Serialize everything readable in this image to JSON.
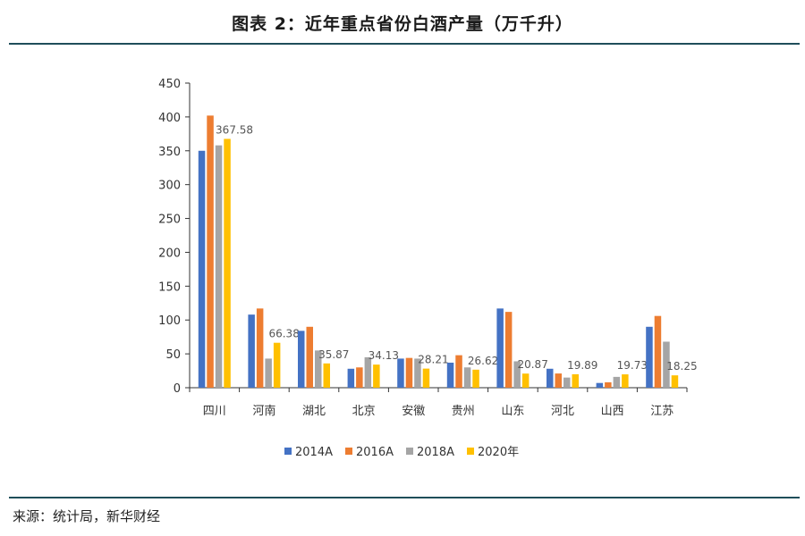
{
  "page": {
    "title": "图表 2：近年重点省份白酒产量（万千升）",
    "source": "来源：统计局，新华财经",
    "rule_color": "#1f4e5a"
  },
  "chart_data": {
    "type": "bar",
    "title": "图表 2：近年重点省份白酒产量（万千升）",
    "xlabel": "",
    "ylabel": "",
    "ylim": [
      0,
      450
    ],
    "yticks": [
      0,
      50,
      100,
      150,
      200,
      250,
      300,
      350,
      400,
      450
    ],
    "grid": false,
    "legend_position": "bottom",
    "categories": [
      "四川",
      "河南",
      "湖北",
      "北京",
      "安徽",
      "贵州",
      "山东",
      "河北",
      "山西",
      "江苏"
    ],
    "series": [
      {
        "name": "2014A",
        "color": "#4472c4",
        "values": [
          350,
          108,
          84,
          28,
          43,
          37,
          117,
          28,
          7,
          90
        ]
      },
      {
        "name": "2016A",
        "color": "#ed7d31",
        "values": [
          402,
          117,
          90,
          30,
          44,
          48,
          112,
          21,
          8,
          106
        ]
      },
      {
        "name": "2018A",
        "color": "#a5a5a5",
        "values": [
          358,
          43,
          55,
          45,
          43,
          30,
          39,
          15,
          16,
          68
        ]
      },
      {
        "name": "2020年",
        "color": "#ffc000",
        "values": [
          367.58,
          66.38,
          35.87,
          34.13,
          28.21,
          26.62,
          20.87,
          19.89,
          19.73,
          18.25
        ]
      }
    ],
    "data_labels": [
      "367.58",
      "66.38",
      "35.87",
      "34.13",
      "28.21",
      "26.62",
      "20.87",
      "19.89",
      "19.73",
      "18.25"
    ]
  }
}
